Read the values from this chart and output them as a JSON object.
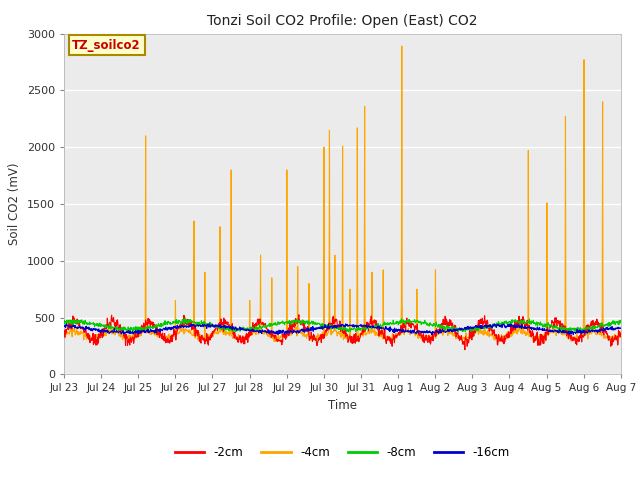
{
  "title": "Tonzi Soil CO2 Profile: Open (East) CO2",
  "ylabel": "Soil CO2 (mV)",
  "xlabel": "Time",
  "ylim": [
    0,
    3000
  ],
  "yticks": [
    0,
    500,
    1000,
    1500,
    2000,
    2500,
    3000
  ],
  "fig_bg": "#ffffff",
  "plot_bg": "#ebebeb",
  "x_start": 0,
  "x_end": 15,
  "x_ticks": [
    0,
    1,
    2,
    3,
    4,
    5,
    6,
    7,
    8,
    9,
    10,
    11,
    12,
    13,
    14,
    15
  ],
  "x_tick_labels": [
    "Jul 23",
    "Jul 24",
    "Jul 25",
    "Jul 26",
    "Jul 27",
    "Jul 28",
    "Jul 29",
    "Jul 30",
    "Jul 31",
    "Aug 1",
    "Aug 2",
    "Aug 3",
    "Aug 4",
    "Aug 5",
    "Aug 6",
    "Aug 7"
  ],
  "legend_labels": [
    "-2cm",
    "-4cm",
    "-8cm",
    "-16cm"
  ],
  "legend_colors": [
    "#ff0000",
    "#ffa500",
    "#00cc00",
    "#0000cc"
  ],
  "annotation_text": "TZ_soilco2",
  "annotation_bg": "#ffffcc",
  "annotation_border": "#aa8800",
  "series_colors": {
    "depth_2cm": "#ff0000",
    "depth_4cm": "#ffa500",
    "depth_8cm": "#00cc00",
    "depth_16cm": "#0000cc"
  },
  "line_width": 0.8,
  "grid_color": "#ffffff",
  "spike_times": [
    2.2,
    3.0,
    3.5,
    3.8,
    4.2,
    4.5,
    5.0,
    5.3,
    5.6,
    6.0,
    6.3,
    6.6,
    7.0,
    7.15,
    7.3,
    7.5,
    7.7,
    7.9,
    8.1,
    8.3,
    8.6,
    9.1,
    9.5,
    10.0,
    12.5,
    13.0,
    13.5,
    14.0,
    14.5
  ],
  "spike_heights": [
    2100,
    650,
    1350,
    900,
    1300,
    1800,
    650,
    1050,
    850,
    1800,
    950,
    800,
    2000,
    2150,
    1050,
    2010,
    750,
    2170,
    2360,
    900,
    920,
    2890,
    750,
    920,
    1970,
    1510,
    2270,
    2770,
    2400
  ]
}
